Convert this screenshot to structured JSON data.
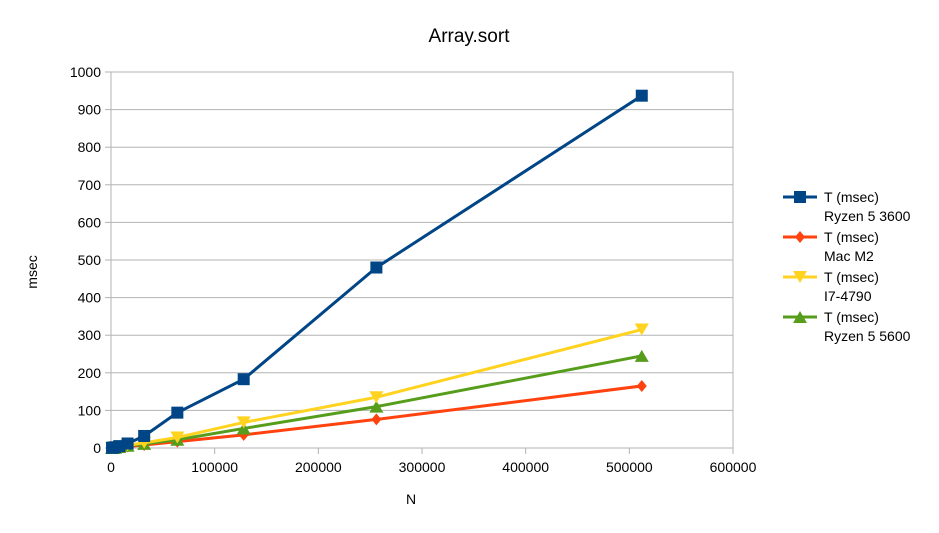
{
  "chart_data": {
    "type": "line",
    "title": "Array.sort",
    "xlabel": "N",
    "ylabel": "msec",
    "xlim": [
      0,
      600000
    ],
    "ylim": [
      0,
      1000
    ],
    "xticks": [
      0,
      100000,
      200000,
      300000,
      400000,
      500000,
      600000
    ],
    "yticks": [
      0,
      100,
      200,
      300,
      400,
      500,
      600,
      700,
      800,
      900,
      1000
    ],
    "xtick_labels": [
      "0",
      "100000",
      "200000",
      "300000",
      "400000",
      "500000",
      "600000"
    ],
    "ytick_labels": [
      "0",
      "100",
      "200",
      "300",
      "400",
      "500",
      "600",
      "700",
      "800",
      "900",
      "1000"
    ],
    "grid": "horizontal",
    "legend_position": "right",
    "x": [
      1000,
      2000,
      4000,
      8000,
      16000,
      32000,
      64000,
      128000,
      256000,
      512000
    ],
    "series": [
      {
        "name": [
          "T (msec)",
          "Ryzen 5 3600"
        ],
        "color": "#004586",
        "marker": "square",
        "values": [
          0.5,
          1,
          2,
          5,
          12,
          32,
          94,
          183,
          480,
          937
        ]
      },
      {
        "name": [
          "T (msec)",
          "Mac M2"
        ],
        "color": "#ff420e",
        "marker": "diamond",
        "values": [
          0.2,
          0.4,
          0.8,
          2,
          4,
          8,
          17,
          35,
          76,
          165
        ]
      },
      {
        "name": [
          "T (msec)",
          "I7-4790"
        ],
        "color": "#ffd320",
        "marker": "triangle-down",
        "values": [
          0.3,
          0.6,
          1.2,
          3,
          7,
          14,
          28,
          68,
          135,
          315
        ]
      },
      {
        "name": [
          "T (msec)",
          "Ryzen 5 5600"
        ],
        "color": "#579d1c",
        "marker": "triangle-up",
        "values": [
          0.2,
          0.5,
          1,
          2.5,
          6,
          11,
          22,
          52,
          110,
          245
        ]
      }
    ]
  }
}
